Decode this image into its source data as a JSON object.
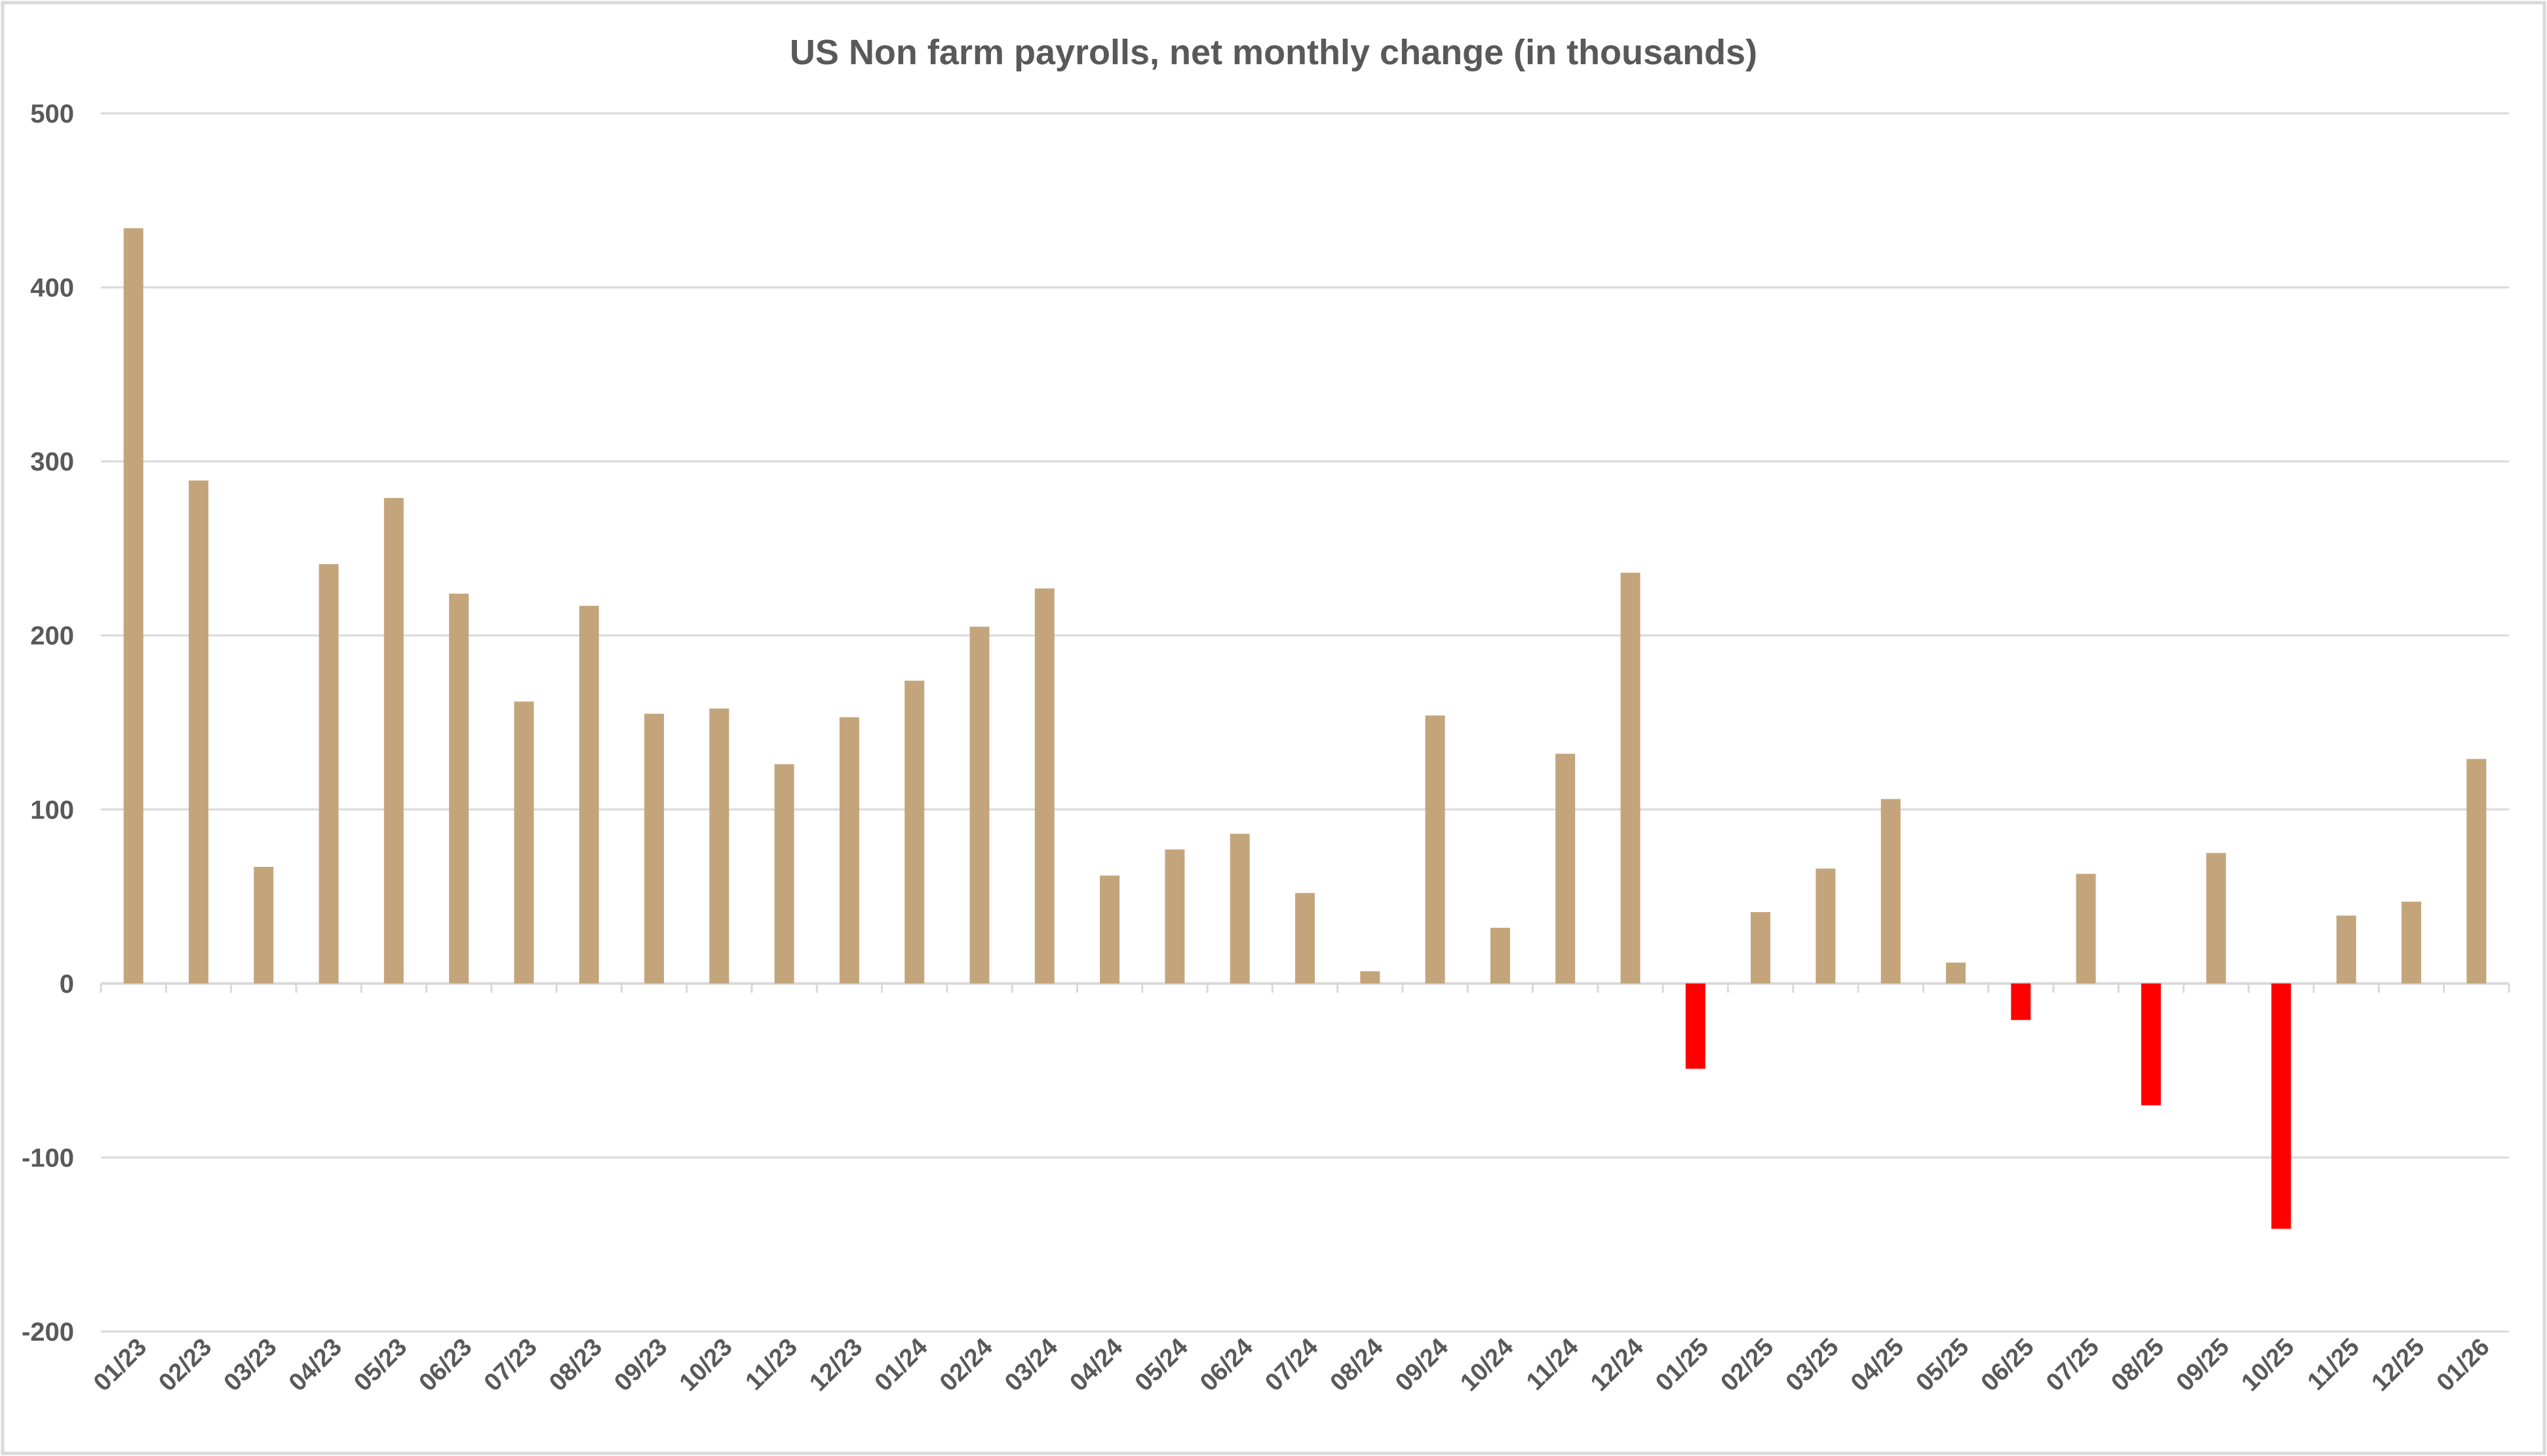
{
  "chart_data": {
    "type": "bar",
    "title": "US Non farm payrolls, net monthly change (in thousands)",
    "xlabel": "",
    "ylabel": "",
    "ylim": [
      -200,
      500
    ],
    "yticks": [
      -200,
      -100,
      0,
      100,
      200,
      300,
      400,
      500
    ],
    "grid": true,
    "legend": "none",
    "colors": {
      "positive": "#C4A57B",
      "negative": "#FF0000",
      "grid": "#D9D9D9",
      "text": "#595959"
    },
    "categories": [
      "01/23",
      "02/23",
      "03/23",
      "04/23",
      "05/23",
      "06/23",
      "07/23",
      "08/23",
      "09/23",
      "10/23",
      "11/23",
      "12/23",
      "01/24",
      "02/24",
      "03/24",
      "04/24",
      "05/24",
      "06/24",
      "07/24",
      "08/24",
      "09/24",
      "10/24",
      "11/24",
      "12/24",
      "01/25",
      "02/25",
      "03/25",
      "04/25",
      "05/25",
      "06/25",
      "07/25",
      "08/25",
      "09/25",
      "10/25",
      "11/25",
      "12/25",
      "01/26"
    ],
    "values": [
      434,
      289,
      67,
      241,
      279,
      224,
      162,
      217,
      155,
      158,
      126,
      153,
      174,
      205,
      227,
      62,
      77,
      86,
      52,
      7,
      154,
      32,
      132,
      236,
      -49,
      41,
      66,
      106,
      12,
      -21,
      63,
      -70,
      75,
      -141,
      39,
      47,
      129
    ]
  }
}
